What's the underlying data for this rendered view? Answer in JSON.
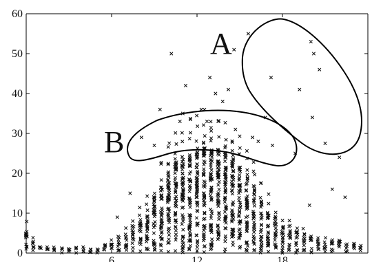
{
  "chart_data": {
    "type": "scatter",
    "title": "",
    "xlabel": "",
    "ylabel": "",
    "xlim": [
      0,
      24
    ],
    "ylim": [
      0,
      60
    ],
    "x_ticks": [
      "6",
      "12",
      "18"
    ],
    "y_ticks": [
      "0",
      "10",
      "20",
      "30",
      "40",
      "50",
      "60"
    ],
    "marker": "x",
    "marker_color": "#111111",
    "grid": false,
    "legend": "none",
    "annotations": [
      {
        "id": "A",
        "label": "A",
        "describes": "sparse outlier points at x≈15.5–21, y≈27–55",
        "center": [
          18.7,
          42
        ],
        "extent": [
          7,
          30
        ]
      },
      {
        "id": "B",
        "label": "B",
        "describes": "band of points at x≈7–16.5, y≈24–35 above the dense core",
        "center": [
          12,
          30
        ]
      }
    ],
    "columns_note": "dense vertical columns of points at every hour step, tallest near x=12–13 (reaching ~25–35 before outliers)",
    "column_heights": [
      [
        0.0,
        6
      ],
      [
        0.5,
        3
      ],
      [
        1.0,
        2
      ],
      [
        1.5,
        2
      ],
      [
        2.0,
        2
      ],
      [
        2.5,
        1.5
      ],
      [
        3.0,
        1.5
      ],
      [
        3.5,
        1.5
      ],
      [
        4.0,
        1.5
      ],
      [
        4.5,
        1.5
      ],
      [
        5.0,
        2
      ],
      [
        5.5,
        2.5
      ],
      [
        6.0,
        3
      ],
      [
        6.5,
        4
      ],
      [
        7.0,
        5
      ],
      [
        7.5,
        7
      ],
      [
        8.0,
        9
      ],
      [
        8.5,
        11
      ],
      [
        9.0,
        14
      ],
      [
        9.5,
        17
      ],
      [
        10.0,
        21
      ],
      [
        10.5,
        23
      ],
      [
        11.0,
        24
      ],
      [
        11.5,
        25
      ],
      [
        12.0,
        26
      ],
      [
        12.5,
        27
      ],
      [
        13.0,
        27
      ],
      [
        13.5,
        26
      ],
      [
        14.0,
        25
      ],
      [
        14.5,
        24
      ],
      [
        15.0,
        22
      ],
      [
        15.5,
        20
      ],
      [
        16.0,
        17
      ],
      [
        16.5,
        14
      ],
      [
        17.0,
        11
      ],
      [
        17.5,
        9
      ],
      [
        18.0,
        8
      ],
      [
        18.5,
        7
      ],
      [
        19.0,
        6
      ],
      [
        19.5,
        5
      ],
      [
        20.0,
        4
      ],
      [
        20.5,
        3.5
      ],
      [
        21.0,
        3
      ],
      [
        21.5,
        3
      ],
      [
        22.0,
        3
      ],
      [
        22.5,
        2.5
      ],
      [
        23.0,
        2.5
      ],
      [
        23.5,
        2
      ]
    ],
    "outliers": [
      [
        15.6,
        55
      ],
      [
        14.6,
        51
      ],
      [
        17.2,
        44
      ],
      [
        19.2,
        41
      ],
      [
        20.6,
        46
      ],
      [
        20.0,
        53
      ],
      [
        20.2,
        50
      ],
      [
        20.1,
        34
      ],
      [
        21.0,
        27.5
      ],
      [
        16.8,
        34
      ],
      [
        16.3,
        28
      ],
      [
        10.2,
        50
      ],
      [
        11.2,
        42
      ],
      [
        12.3,
        36
      ],
      [
        13.3,
        40
      ],
      [
        13.8,
        38
      ],
      [
        14.2,
        41
      ],
      [
        12.9,
        44
      ],
      [
        11.0,
        35
      ],
      [
        9.4,
        36
      ],
      [
        10.8,
        33
      ],
      [
        12.7,
        33
      ],
      [
        14.7,
        31
      ],
      [
        15.9,
        29
      ],
      [
        17.3,
        27
      ],
      [
        8.1,
        29
      ],
      [
        9.0,
        27
      ],
      [
        18.9,
        25
      ],
      [
        21.5,
        16
      ],
      [
        22.4,
        14
      ],
      [
        19.9,
        12
      ],
      [
        22.0,
        24
      ],
      [
        7.3,
        15
      ],
      [
        6.4,
        9
      ]
    ]
  }
}
